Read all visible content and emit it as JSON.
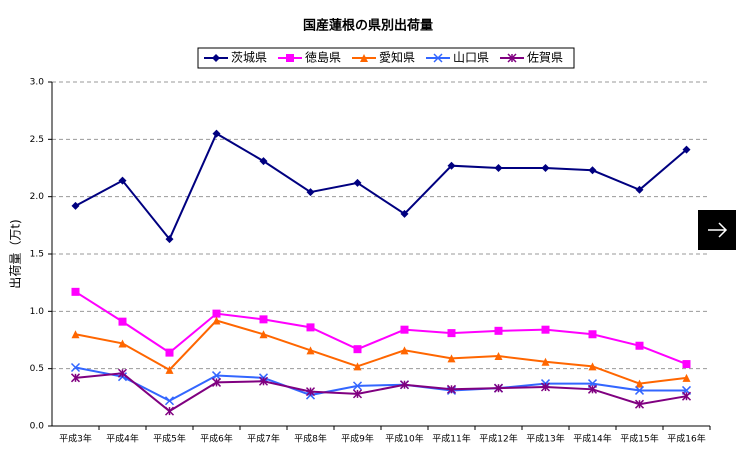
{
  "chart_data": {
    "type": "line",
    "title": "国産蓮根の県別出荷量",
    "y_label": "出荷量（万t)",
    "categories": [
      "平成3年",
      "平成4年",
      "平成5年",
      "平成6年",
      "平成7年",
      "平成8年",
      "平成9年",
      "平成10年",
      "平成11年",
      "平成12年",
      "平成13年",
      "平成14年",
      "平成15年",
      "平成16年"
    ],
    "series": [
      {
        "name": "茨城県",
        "color": "#000080",
        "marker": "diamond",
        "values": [
          1.92,
          2.14,
          1.63,
          2.55,
          2.31,
          2.04,
          2.12,
          1.85,
          2.27,
          2.25,
          2.25,
          2.23,
          2.06,
          2.41
        ]
      },
      {
        "name": "徳島県",
        "color": "#ff00ff",
        "marker": "square",
        "values": [
          1.17,
          0.91,
          0.64,
          0.98,
          0.93,
          0.86,
          0.67,
          0.84,
          0.81,
          0.83,
          0.84,
          0.8,
          0.7,
          0.54
        ]
      },
      {
        "name": "愛知県",
        "color": "#ff6600",
        "marker": "triangle",
        "values": [
          0.8,
          0.72,
          0.49,
          0.92,
          0.8,
          0.66,
          0.52,
          0.66,
          0.59,
          0.61,
          0.56,
          0.52,
          0.37,
          0.42
        ]
      },
      {
        "name": "山口県",
        "color": "#3366ff",
        "marker": "x",
        "values": [
          0.51,
          0.43,
          0.22,
          0.44,
          0.42,
          0.27,
          0.35,
          0.36,
          0.31,
          0.33,
          0.37,
          0.37,
          0.31,
          0.31
        ]
      },
      {
        "name": "佐賀県",
        "color": "#800080",
        "marker": "star",
        "values": [
          0.42,
          0.46,
          0.13,
          0.38,
          0.39,
          0.3,
          0.28,
          0.36,
          0.32,
          0.33,
          0.34,
          0.32,
          0.19,
          0.26
        ]
      }
    ],
    "ylim": [
      0,
      3
    ],
    "yticks": [
      {
        "value": 0,
        "label": "0.0"
      },
      0.5,
      {
        "value": 1,
        "label": "1.0"
      },
      1.5,
      {
        "value": 2,
        "label": "2.0"
      },
      2.5,
      {
        "value": 3,
        "label": "3.0"
      }
    ],
    "grid": true,
    "legend": "top"
  }
}
